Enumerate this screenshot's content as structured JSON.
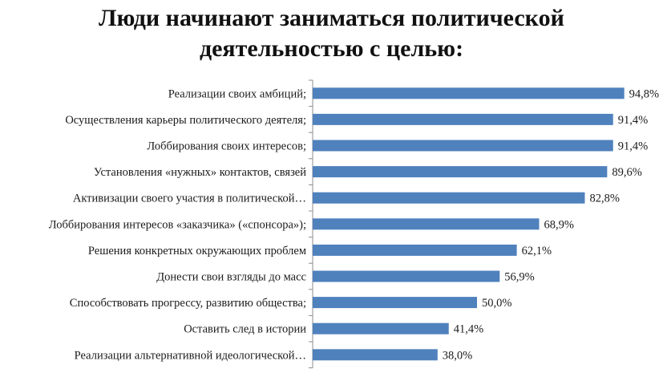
{
  "chart_data": {
    "type": "bar",
    "orientation": "horizontal",
    "title_lines": [
      "Люди начинают заниматься политической",
      "деятельностью с целью:"
    ],
    "categories": [
      "Реализации своих амбиций;",
      "Осуществления карьеры политического деятеля;",
      "Лоббирования своих интересов;",
      "Установления «нужных» контактов, связей",
      "Активизации своего участия в политической…",
      "Лоббирования интересов «заказчика» («спонсора»);",
      "Решения конкретных окружающих проблем",
      "Донести свои взгляды до масс",
      "Способствовать прогрессу, развитию общества;",
      "Оставить след в истории",
      "Реализации альтернативной идеологической…"
    ],
    "values": [
      94.8,
      91.4,
      91.4,
      89.6,
      82.8,
      68.9,
      62.1,
      56.9,
      50.0,
      41.4,
      38.0
    ],
    "value_labels": [
      "94,8%",
      "91,4%",
      "91,4%",
      "89,6%",
      "82,8%",
      "68,9%",
      "62,1%",
      "56,9%",
      "50,0%",
      "41,4%",
      "38,0%"
    ],
    "xlim": [
      0,
      100
    ],
    "bar_color": "#4f81bd",
    "grid": false,
    "legend": "none"
  }
}
